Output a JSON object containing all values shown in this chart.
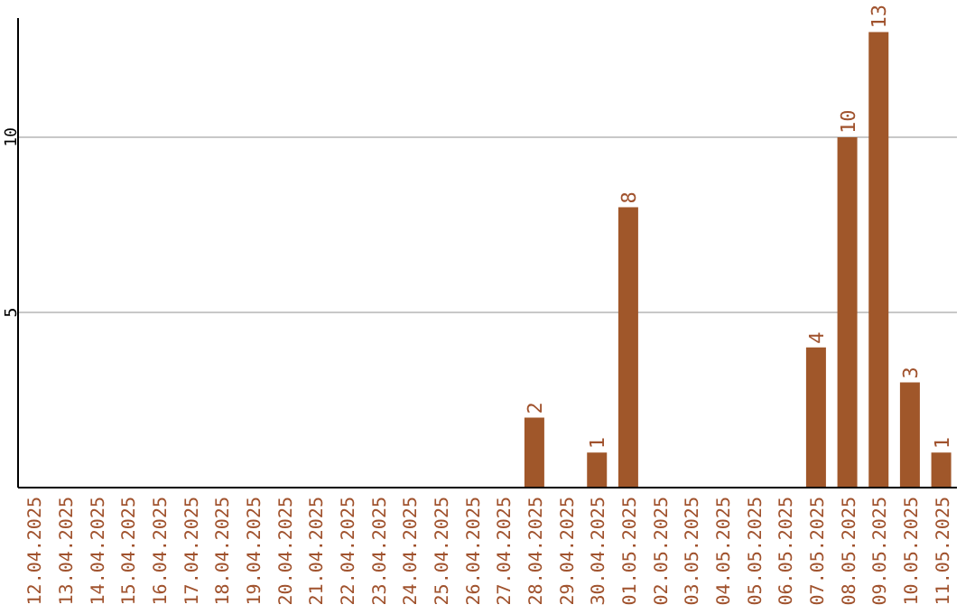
{
  "chart_data": {
    "type": "bar",
    "categories": [
      "12.04.2025",
      "13.04.2025",
      "14.04.2025",
      "15.04.2025",
      "16.04.2025",
      "17.04.2025",
      "18.04.2025",
      "19.04.2025",
      "20.04.2025",
      "21.04.2025",
      "22.04.2025",
      "23.04.2025",
      "24.04.2025",
      "25.04.2025",
      "26.04.2025",
      "27.04.2025",
      "28.04.2025",
      "29.04.2025",
      "30.04.2025",
      "01.05.2025",
      "02.05.2025",
      "03.05.2025",
      "04.05.2025",
      "05.05.2025",
      "06.05.2025",
      "07.05.2025",
      "08.05.2025",
      "09.05.2025",
      "10.05.2025",
      "11.05.2025"
    ],
    "values": [
      0,
      0,
      0,
      0,
      0,
      0,
      0,
      0,
      0,
      0,
      0,
      0,
      0,
      0,
      0,
      0,
      2,
      0,
      1,
      8,
      0,
      0,
      0,
      0,
      0,
      4,
      10,
      13,
      3,
      1
    ],
    "value_labels": [
      null,
      null,
      null,
      null,
      null,
      null,
      null,
      null,
      null,
      null,
      null,
      null,
      null,
      null,
      null,
      null,
      "2",
      null,
      "1",
      "8",
      null,
      null,
      null,
      null,
      null,
      "4",
      "10",
      "13",
      "3",
      "1"
    ],
    "color": "#a0572a",
    "ylim": [
      0,
      13.4
    ],
    "yticks": [
      5,
      10
    ],
    "grid": "y"
  }
}
